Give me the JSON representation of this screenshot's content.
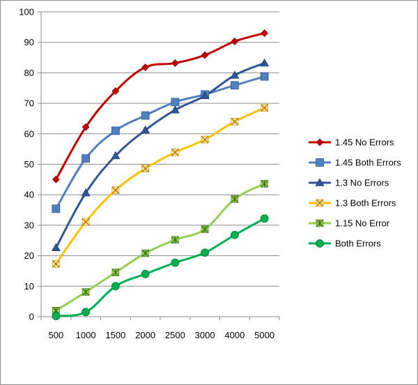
{
  "chart_data": {
    "type": "line",
    "title": "",
    "xlabel": "",
    "ylabel": "",
    "categories": [
      "500",
      "1000",
      "1500",
      "2000",
      "2500",
      "3000",
      "4000",
      "5000"
    ],
    "ylim": [
      0,
      100
    ],
    "yticks": [
      "0",
      "10",
      "20",
      "30",
      "40",
      "50",
      "60",
      "70",
      "80",
      "90",
      "100"
    ],
    "grid": "horizontal",
    "smooth": true,
    "legend_position": "right",
    "series": [
      {
        "name": "1.45 No Errors",
        "color": "#C00000",
        "marker": "diamond",
        "values": [
          45.0,
          62.2,
          74.0,
          81.8,
          83.2,
          85.8,
          90.3,
          93.0
        ]
      },
      {
        "name": "1.45 Both Errors",
        "color": "#4F81BD",
        "marker": "square",
        "values": [
          35.4,
          51.9,
          61.0,
          66.0,
          70.4,
          72.9,
          75.9,
          78.8
        ]
      },
      {
        "name": "1.3 No Errors",
        "color": "#2F5597",
        "marker": "triangle",
        "values": [
          22.6,
          40.6,
          52.8,
          61.2,
          67.8,
          72.5,
          79.2,
          83.2
        ]
      },
      {
        "name": "1.3 Both Errors",
        "color": "#FFC000",
        "marker": "x",
        "values": [
          17.3,
          31.1,
          41.5,
          48.6,
          53.9,
          58.1,
          64.0,
          68.5
        ]
      },
      {
        "name": "1.15 No Error",
        "color": "#92D050",
        "marker": "star",
        "values": [
          2.0,
          8.1,
          14.5,
          20.8,
          25.2,
          28.7,
          38.6,
          43.6
        ]
      },
      {
        "name": "Both Errors",
        "color": "#00B050",
        "marker": "circle",
        "values": [
          0.2,
          1.5,
          10.0,
          14.0,
          17.7,
          21.0,
          26.8,
          32.2
        ]
      }
    ]
  }
}
